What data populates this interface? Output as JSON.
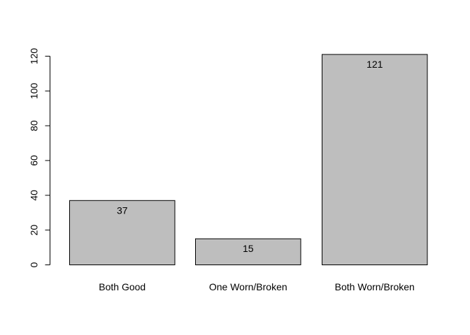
{
  "chart_data": {
    "type": "bar",
    "categories": [
      "Both Good",
      "One Worn/Broken",
      "Both Worn/Broken"
    ],
    "values": [
      37,
      15,
      121
    ],
    "data_labels": [
      "37",
      "15",
      "121"
    ],
    "ylim": [
      0,
      120
    ],
    "yticks": [
      "0",
      "20",
      "40",
      "60",
      "80",
      "100",
      "120"
    ],
    "title": "",
    "xlabel": "",
    "ylabel": "",
    "grid": false,
    "colors": {
      "bar_fill": "#bebebe",
      "bar_stroke": "#000000"
    }
  }
}
